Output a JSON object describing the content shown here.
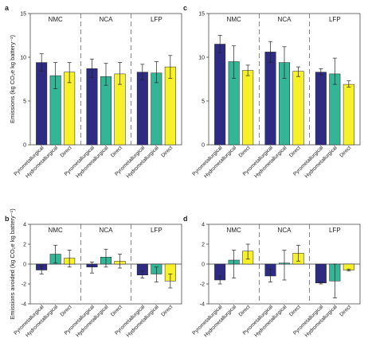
{
  "chart_data": [
    {
      "panel": "a",
      "type": "bar",
      "groups": [
        "NMC",
        "NCA",
        "LFP"
      ],
      "categories": [
        "Pyrometallurgical",
        "Hydrometallurgical",
        "Direct"
      ],
      "ylabel": "Emissions (kg CO₂e kg battery⁻¹)",
      "ylim": [
        0,
        15
      ],
      "yticks": [
        0,
        5,
        10,
        15
      ],
      "values": [
        [
          9.4,
          7.9,
          8.3
        ],
        [
          8.7,
          7.8,
          8.1
        ],
        [
          8.3,
          8.2,
          8.9
        ]
      ],
      "err_low": [
        [
          8.4,
          6.4,
          7.1
        ],
        [
          7.7,
          6.8,
          6.9
        ],
        [
          7.4,
          7.1,
          7.6
        ]
      ],
      "err_high": [
        [
          10.4,
          9.4,
          9.4
        ],
        [
          9.8,
          9.3,
          9.4
        ],
        [
          9.2,
          9.5,
          10.2
        ]
      ]
    },
    {
      "panel": "c",
      "type": "bar",
      "groups": [
        "NMC",
        "NCA",
        "LFP"
      ],
      "categories": [
        "Pyrometallurgical",
        "Hydrometallurgical",
        "Direct"
      ],
      "ylabel": "",
      "ylim": [
        0,
        15
      ],
      "yticks": [
        0,
        5,
        10,
        15
      ],
      "values": [
        [
          11.5,
          9.5,
          8.5
        ],
        [
          10.6,
          9.4,
          8.4
        ],
        [
          8.3,
          8.1,
          6.9
        ]
      ],
      "err_low": [
        [
          10.5,
          7.6,
          7.9
        ],
        [
          9.4,
          7.6,
          7.8
        ],
        [
          8.0,
          6.9,
          6.6
        ]
      ],
      "err_high": [
        [
          12.5,
          11.3,
          9.1
        ],
        [
          11.8,
          11.2,
          8.9
        ],
        [
          8.7,
          9.9,
          7.3
        ]
      ]
    },
    {
      "panel": "b",
      "type": "bar",
      "groups": [
        "NMC",
        "NCA",
        "LFP"
      ],
      "categories": [
        "Pyrometallurgical",
        "Hydrometallurgical",
        "Direct"
      ],
      "ylabel": "Emissions avoided (kg CO₂e kg battery⁻¹)",
      "ylim": [
        -4,
        4
      ],
      "yticks": [
        -4,
        -2,
        0,
        2,
        4
      ],
      "values": [
        [
          -0.6,
          1.0,
          0.6
        ],
        [
          -0.3,
          0.7,
          0.3
        ],
        [
          -1.1,
          -1.0,
          -1.7
        ]
      ],
      "err_low": [
        [
          -1.0,
          0.1,
          -0.3
        ],
        [
          -0.9,
          -0.3,
          -0.4
        ],
        [
          -1.4,
          -1.8,
          -2.4
        ]
      ],
      "err_high": [
        [
          -0.2,
          1.9,
          1.4
        ],
        [
          0.2,
          1.5,
          1.0
        ],
        [
          -0.7,
          -0.3,
          -1.0
        ]
      ]
    },
    {
      "panel": "d",
      "type": "bar",
      "groups": [
        "NMC",
        "NCA",
        "LFP"
      ],
      "categories": [
        "Pyrometallurgical",
        "Hydrometallurgical",
        "Direct"
      ],
      "ylabel": "",
      "ylim": [
        -4,
        4
      ],
      "yticks": [
        -4,
        -2,
        0,
        2,
        4
      ],
      "values": [
        [
          -1.6,
          0.4,
          1.3
        ],
        [
          -1.2,
          0.1,
          1.1
        ],
        [
          -1.9,
          -1.7,
          -0.6
        ]
      ],
      "err_low": [
        [
          -2.0,
          -1.4,
          0.5
        ],
        [
          -1.8,
          -1.6,
          0.3
        ],
        [
          -2.0,
          -3.4,
          -0.7
        ]
      ],
      "err_high": [
        [
          -1.2,
          1.4,
          2.0
        ],
        [
          -0.5,
          1.4,
          1.9
        ],
        [
          -1.8,
          0.0,
          -0.5
        ]
      ]
    }
  ],
  "colors": {
    "pyrometallurgical": "#2e2b83",
    "hydrometallurgical": "#33b596",
    "direct": "#f6f12a",
    "axis": "#333333",
    "divider": "#555555"
  }
}
